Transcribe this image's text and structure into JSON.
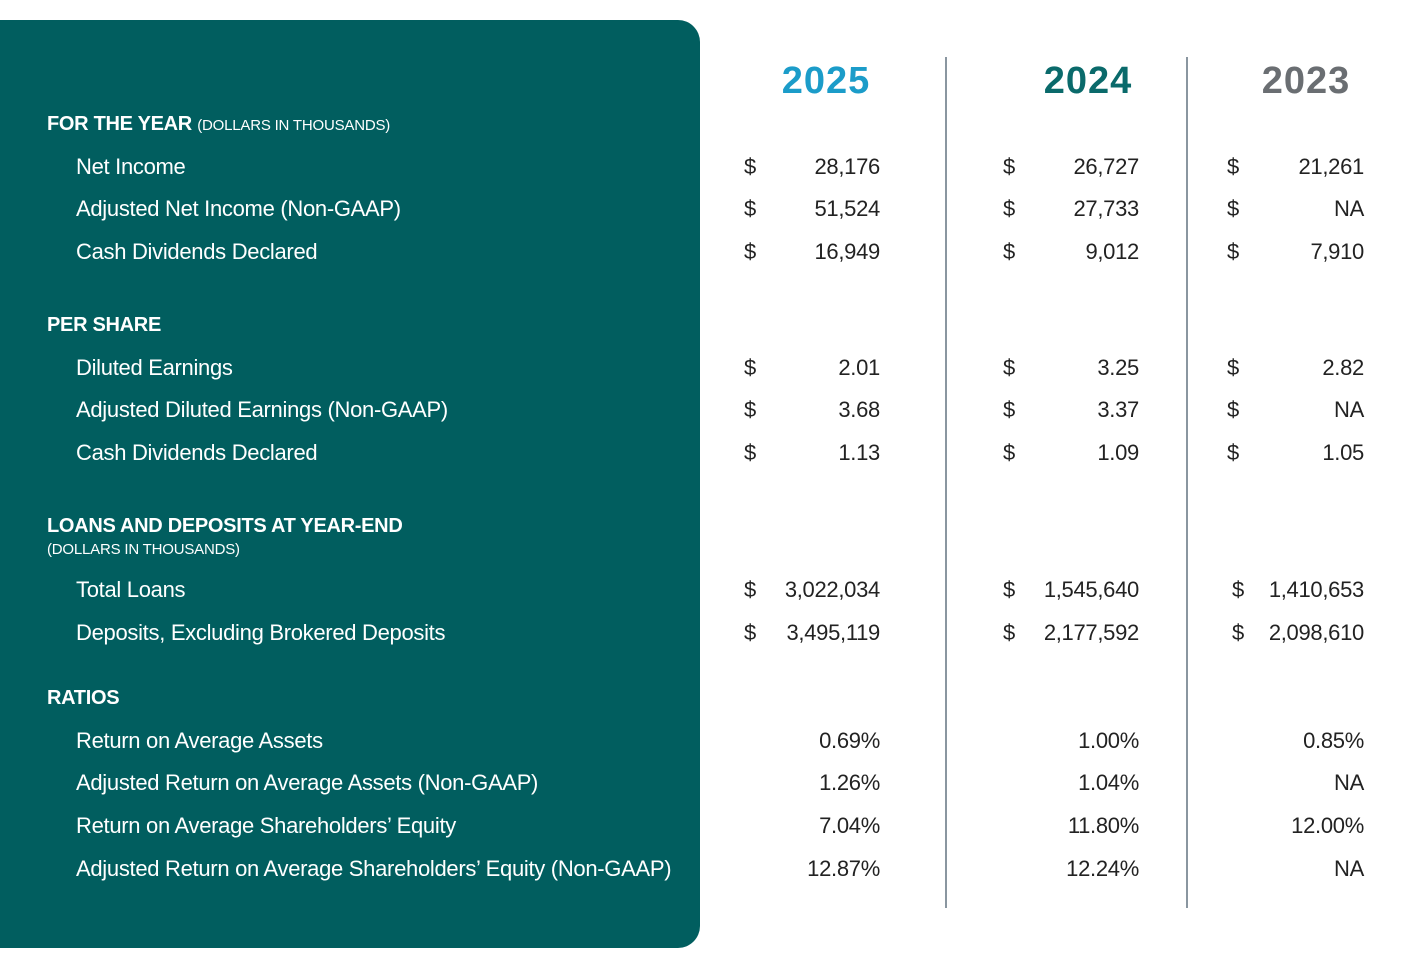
{
  "years": [
    {
      "label": "2025",
      "color": "#1b9cc9"
    },
    {
      "label": "2024",
      "color": "#0a6a6b"
    },
    {
      "label": "2023",
      "color": "#6a6e72"
    }
  ],
  "sections": {
    "for_the_year": {
      "title": "FOR THE YEAR",
      "note": "(DOLLARS IN THOUSANDS)"
    },
    "per_share": {
      "title": "PER SHARE"
    },
    "loans_deposits": {
      "title": "LOANS AND DEPOSITS AT YEAR-END",
      "note": "(DOLLARS IN THOUSANDS)"
    },
    "ratios": {
      "title": "RATIOS"
    }
  },
  "currency_symbol": "$",
  "rows": [
    {
      "label": "Net Income",
      "values": [
        "28,176",
        "26,727",
        "21,261"
      ]
    },
    {
      "label": "Adjusted Net Income (Non-GAAP)",
      "values": [
        "51,524",
        "27,733",
        "NA"
      ]
    },
    {
      "label": "Cash Dividends Declared",
      "values": [
        "16,949",
        "9,012",
        "7,910"
      ]
    },
    {
      "label": "Diluted Earnings",
      "values": [
        "2.01",
        "3.25",
        "2.82"
      ]
    },
    {
      "label": "Adjusted Diluted Earnings (Non-GAAP)",
      "values": [
        "3.68",
        "3.37",
        "NA"
      ]
    },
    {
      "label": "Cash Dividends Declared",
      "values": [
        "1.13",
        "1.09",
        "1.05"
      ]
    },
    {
      "label": "Total Loans",
      "values": [
        "3,022,034",
        "1,545,640",
        "1,410,653"
      ]
    },
    {
      "label": "Deposits, Excluding Brokered Deposits",
      "values": [
        "3,495,119",
        "2,177,592",
        "2,098,610"
      ]
    },
    {
      "label": "Return on Average Assets",
      "values": [
        "0.69%",
        "1.00%",
        "0.85%"
      ]
    },
    {
      "label": "Adjusted Return on Average Assets (Non-GAAP)",
      "values": [
        "1.26%",
        "1.04%",
        "NA"
      ]
    },
    {
      "label": "Return on Average Shareholders’ Equity",
      "values": [
        "7.04%",
        "11.80%",
        "12.00%"
      ]
    },
    {
      "label": "Adjusted Return on Average Shareholders’ Equity (Non-GAAP)",
      "values": [
        "12.87%",
        "12.24%",
        "NA"
      ]
    }
  ]
}
